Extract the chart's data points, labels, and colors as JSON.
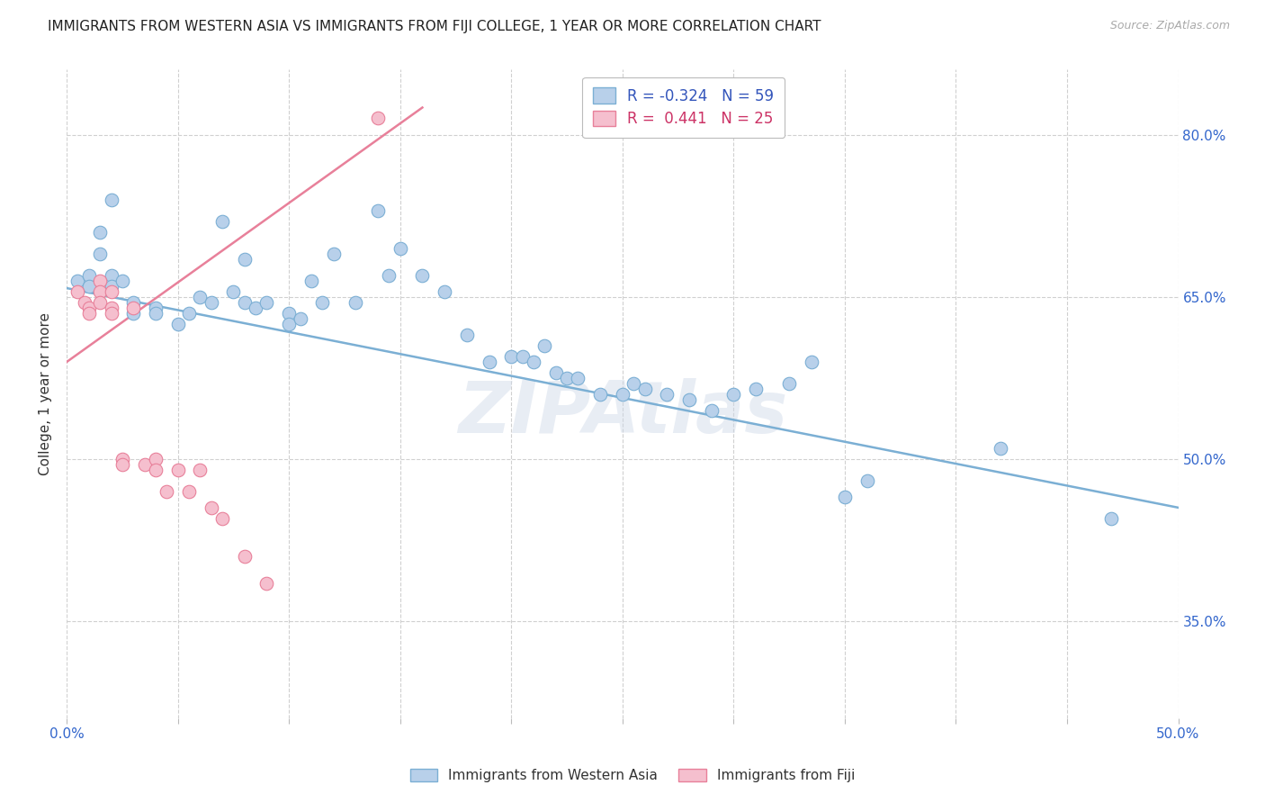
{
  "title": "IMMIGRANTS FROM WESTERN ASIA VS IMMIGRANTS FROM FIJI COLLEGE, 1 YEAR OR MORE CORRELATION CHART",
  "source": "Source: ZipAtlas.com",
  "ylabel": "College, 1 year or more",
  "xlim": [
    0.0,
    0.5
  ],
  "ylim": [
    0.26,
    0.86
  ],
  "xticks": [
    0.0,
    0.05,
    0.1,
    0.15,
    0.2,
    0.25,
    0.3,
    0.35,
    0.4,
    0.45,
    0.5
  ],
  "xtick_labels": [
    "0.0%",
    "",
    "",
    "",
    "",
    "",
    "",
    "",
    "",
    "",
    "50.0%"
  ],
  "ytick_positions": [
    0.35,
    0.5,
    0.65,
    0.8
  ],
  "ytick_labels": [
    "35.0%",
    "50.0%",
    "65.0%",
    "80.0%"
  ],
  "blue_R": "-0.324",
  "blue_N": "59",
  "pink_R": "0.441",
  "pink_N": "25",
  "blue_color": "#b8d0ea",
  "blue_edge_color": "#7bafd4",
  "pink_color": "#f5bfce",
  "pink_edge_color": "#e8809a",
  "watermark": "ZIPAtlas",
  "blue_scatter_x": [
    0.005,
    0.01,
    0.01,
    0.015,
    0.015,
    0.02,
    0.02,
    0.02,
    0.025,
    0.03,
    0.03,
    0.04,
    0.04,
    0.05,
    0.055,
    0.06,
    0.065,
    0.07,
    0.075,
    0.08,
    0.08,
    0.085,
    0.09,
    0.1,
    0.1,
    0.105,
    0.11,
    0.115,
    0.12,
    0.13,
    0.14,
    0.145,
    0.15,
    0.16,
    0.17,
    0.18,
    0.19,
    0.2,
    0.205,
    0.21,
    0.215,
    0.22,
    0.225,
    0.23,
    0.24,
    0.25,
    0.255,
    0.26,
    0.27,
    0.28,
    0.29,
    0.3,
    0.31,
    0.325,
    0.335,
    0.35,
    0.36,
    0.42,
    0.47
  ],
  "blue_scatter_y": [
    0.665,
    0.67,
    0.66,
    0.71,
    0.69,
    0.74,
    0.67,
    0.66,
    0.665,
    0.645,
    0.635,
    0.64,
    0.635,
    0.625,
    0.635,
    0.65,
    0.645,
    0.72,
    0.655,
    0.685,
    0.645,
    0.64,
    0.645,
    0.635,
    0.625,
    0.63,
    0.665,
    0.645,
    0.69,
    0.645,
    0.73,
    0.67,
    0.695,
    0.67,
    0.655,
    0.615,
    0.59,
    0.595,
    0.595,
    0.59,
    0.605,
    0.58,
    0.575,
    0.575,
    0.56,
    0.56,
    0.57,
    0.565,
    0.56,
    0.555,
    0.545,
    0.56,
    0.565,
    0.57,
    0.59,
    0.465,
    0.48,
    0.51,
    0.445
  ],
  "pink_scatter_x": [
    0.005,
    0.008,
    0.01,
    0.01,
    0.015,
    0.015,
    0.015,
    0.02,
    0.02,
    0.02,
    0.025,
    0.025,
    0.03,
    0.035,
    0.04,
    0.04,
    0.045,
    0.05,
    0.055,
    0.06,
    0.065,
    0.07,
    0.08,
    0.09,
    0.14
  ],
  "pink_scatter_y": [
    0.655,
    0.645,
    0.64,
    0.635,
    0.665,
    0.655,
    0.645,
    0.655,
    0.64,
    0.635,
    0.5,
    0.495,
    0.64,
    0.495,
    0.5,
    0.49,
    0.47,
    0.49,
    0.47,
    0.49,
    0.455,
    0.445,
    0.41,
    0.385,
    0.815
  ],
  "blue_line_x": [
    0.0,
    0.5
  ],
  "blue_line_y": [
    0.658,
    0.455
  ],
  "pink_line_x": [
    -0.01,
    0.16
  ],
  "pink_line_y": [
    0.575,
    0.825
  ]
}
